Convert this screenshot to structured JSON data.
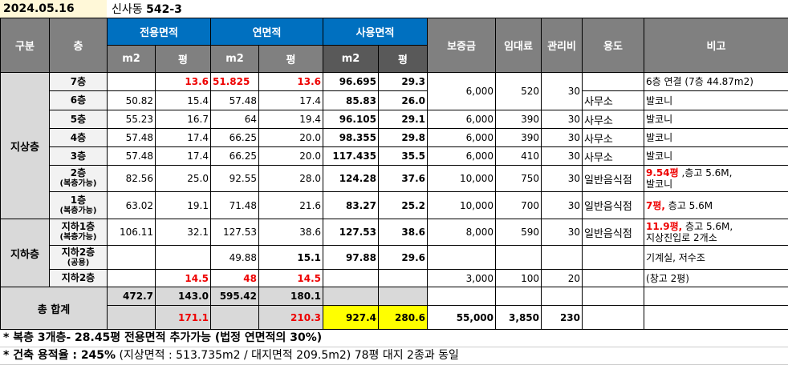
{
  "date": "2024.05.16",
  "address_prefix": "신사동",
  "address_num": "542-3",
  "headers": {
    "division": "구분",
    "floor": "층",
    "exclusive": "전용면적",
    "gross": "연면적",
    "usable": "사용면적",
    "m2": "m2",
    "pyeong": "평",
    "deposit": "보증금",
    "rent": "임대료",
    "mgmt": "관리비",
    "use": "용도",
    "remark": "비고"
  },
  "groups": {
    "above": "지상층",
    "below": "지하층",
    "total": "총 합계"
  },
  "rows": [
    {
      "floor": "7층",
      "sub": "",
      "ex_m2": "",
      "ex_py": "13.6",
      "gr_m2": "51.825",
      "gr_py": "13.6",
      "us_m2": "96.695",
      "us_py": "29.3",
      "deposit": "6,000",
      "rent": "520",
      "mgmt": "30",
      "use": "",
      "remark_red": "",
      "remark": "6층 연결 (7층 44.87m2)"
    },
    {
      "floor": "6층",
      "sub": "",
      "ex_m2": "50.82",
      "ex_py": "15.4",
      "gr_m2": "57.48",
      "gr_py": "17.4",
      "us_m2": "85.83",
      "us_py": "26.0",
      "use": "사무소",
      "remark_red": "",
      "remark": "발코니"
    },
    {
      "floor": "5층",
      "sub": "",
      "ex_m2": "55.23",
      "ex_py": "16.7",
      "gr_m2": "64",
      "gr_py": "19.4",
      "us_m2": "96.105",
      "us_py": "29.1",
      "deposit": "6,000",
      "rent": "390",
      "mgmt": "30",
      "use": "사무소",
      "remark_red": "",
      "remark": "발코니"
    },
    {
      "floor": "4층",
      "sub": "",
      "ex_m2": "57.48",
      "ex_py": "17.4",
      "gr_m2": "66.25",
      "gr_py": "20.0",
      "us_m2": "98.355",
      "us_py": "29.8",
      "deposit": "6,000",
      "rent": "390",
      "mgmt": "30",
      "use": "사무소",
      "remark_red": "",
      "remark": "발코니"
    },
    {
      "floor": "3층",
      "sub": "",
      "ex_m2": "57.48",
      "ex_py": "17.4",
      "gr_m2": "66.25",
      "gr_py": "20.0",
      "us_m2": "117.435",
      "us_py": "35.5",
      "deposit": "6,000",
      "rent": "410",
      "mgmt": "30",
      "use": "사무소",
      "remark_red": "",
      "remark": "발코니"
    },
    {
      "floor": "2층",
      "sub": "(복층가능)",
      "ex_m2": "82.56",
      "ex_py": "25.0",
      "gr_m2": "92.55",
      "gr_py": "28.0",
      "us_m2": "124.28",
      "us_py": "37.6",
      "deposit": "10,000",
      "rent": "750",
      "mgmt": "30",
      "use": "일반음식점",
      "remark_red": "9.54평",
      "remark": " ,층고 5.6M,",
      "remark2": "발코니"
    },
    {
      "floor": "1층",
      "sub": "(복층가능)",
      "ex_m2": "63.02",
      "ex_py": "19.1",
      "gr_m2": "71.48",
      "gr_py": "21.6",
      "us_m2": "83.27",
      "us_py": "25.2",
      "deposit": "10,000",
      "rent": "700",
      "mgmt": "30",
      "use": "일반음식점",
      "remark_red": "7평,",
      "remark": " 층고 5.6M"
    },
    {
      "floor": "지하1층",
      "sub": "(복층가능)",
      "ex_m2": "106.11",
      "ex_py": "32.1",
      "gr_m2": "127.53",
      "gr_py": "38.6",
      "us_m2": "127.53",
      "us_py": "38.6",
      "deposit": "8,000",
      "rent": "590",
      "mgmt": "30",
      "use": "일반음식점",
      "remark_red": "11.9평,",
      "remark": " 층고 5.6M,",
      "remark2": "지상진입로 2개소"
    },
    {
      "floor": "지하2층",
      "sub": "(공용)",
      "ex_m2": "",
      "ex_py": "",
      "gr_m2": "49.88",
      "gr_py": "15.1",
      "us_m2": "97.88",
      "us_py": "29.6",
      "deposit": "",
      "rent": "",
      "mgmt": "",
      "use": "",
      "remark_red": "",
      "remark": "기계실, 저수조"
    },
    {
      "floor": "지하2층",
      "sub": "",
      "ex_m2": "",
      "ex_py": "14.5",
      "gr_m2": "48",
      "gr_py": "14.5",
      "us_m2": "",
      "us_py": "",
      "deposit": "3,000",
      "rent": "100",
      "mgmt": "20",
      "use": "",
      "remark_red": "",
      "remark": "(창고 2평)"
    }
  ],
  "totals": {
    "ex_m2": "472.7",
    "ex_py": "143.0",
    "gr_m2": "595.42",
    "gr_py": "180.1",
    "ex_py2": "171.1",
    "gr_py2": "210.3",
    "us_m2": "927.4",
    "us_py": "280.6",
    "deposit": "55,000",
    "rent": "3,850",
    "mgmt": "230"
  },
  "footnotes": {
    "line1": "* 복층 3개층- 28.45평 전용면적 추가가능  (법정 연면적의 30%)",
    "line2_bold": "* 건축 용적율 : 245%",
    "line2": " (지상면적 : 513.735m2 / 대지면적 209.5m2) 78평 대지 2종과 동일"
  }
}
